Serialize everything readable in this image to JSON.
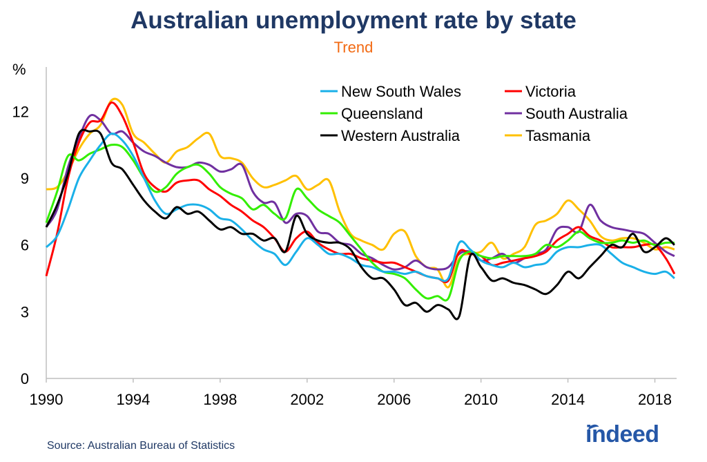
{
  "chart_data": {
    "type": "line",
    "title": "Australian unemployment rate by state",
    "subtitle": "Trend",
    "ylabel": "%",
    "ylim": [
      0,
      14
    ],
    "yticks": [
      0,
      3,
      6,
      9,
      12
    ],
    "xlim": [
      1990,
      2019
    ],
    "xticks": [
      1990,
      1994,
      1998,
      2002,
      2006,
      2010,
      2014,
      2018
    ],
    "legend": "top-right",
    "series": [
      {
        "name": "New South Wales",
        "color": "#1ab0e8",
        "x": [
          1990.0,
          1990.5,
          1991.0,
          1991.5,
          1992.0,
          1992.5,
          1993.0,
          1993.5,
          1994.0,
          1994.5,
          1995.0,
          1995.5,
          1996.0,
          1996.5,
          1997.0,
          1997.5,
          1998.0,
          1998.5,
          1999.0,
          1999.5,
          2000.0,
          2000.5,
          2001.0,
          2001.5,
          2002.0,
          2002.5,
          2003.0,
          2003.5,
          2004.0,
          2004.5,
          2005.0,
          2005.5,
          2006.0,
          2006.5,
          2007.0,
          2007.5,
          2008.0,
          2008.5,
          2009.0,
          2009.5,
          2010.0,
          2010.5,
          2011.0,
          2011.5,
          2012.0,
          2012.5,
          2013.0,
          2013.5,
          2014.0,
          2014.5,
          2015.0,
          2015.5,
          2016.0,
          2016.5,
          2017.0,
          2017.5,
          2018.0,
          2018.5,
          2018.9
        ],
        "y": [
          5.9,
          6.4,
          7.6,
          9.0,
          9.8,
          10.5,
          11.0,
          10.7,
          10.0,
          9.0,
          8.0,
          7.4,
          7.6,
          7.8,
          7.8,
          7.6,
          7.2,
          7.1,
          6.7,
          6.2,
          5.8,
          5.6,
          5.1,
          5.7,
          6.3,
          6.0,
          5.6,
          5.6,
          5.4,
          5.1,
          5.0,
          4.8,
          4.8,
          4.7,
          4.8,
          4.6,
          4.5,
          4.5,
          6.1,
          5.8,
          5.3,
          5.1,
          5.0,
          5.2,
          5.0,
          5.1,
          5.2,
          5.7,
          5.9,
          5.9,
          6.0,
          6.0,
          5.6,
          5.2,
          5.0,
          4.8,
          4.7,
          4.8,
          4.5
        ]
      },
      {
        "name": "Victoria",
        "color": "#ff0000",
        "x": [
          1990.0,
          1990.5,
          1991.0,
          1991.5,
          1992.0,
          1992.5,
          1993.0,
          1993.5,
          1994.0,
          1994.5,
          1995.0,
          1995.5,
          1996.0,
          1996.5,
          1997.0,
          1997.5,
          1998.0,
          1998.5,
          1999.0,
          1999.5,
          2000.0,
          2000.5,
          2001.0,
          2001.5,
          2002.0,
          2002.5,
          2003.0,
          2003.5,
          2004.0,
          2004.5,
          2005.0,
          2005.5,
          2006.0,
          2006.5,
          2007.0,
          2007.5,
          2008.0,
          2008.5,
          2009.0,
          2009.5,
          2010.0,
          2010.5,
          2011.0,
          2011.5,
          2012.0,
          2012.5,
          2013.0,
          2013.5,
          2014.0,
          2014.5,
          2015.0,
          2015.5,
          2016.0,
          2016.5,
          2017.0,
          2017.5,
          2018.0,
          2018.5,
          2018.9
        ],
        "y": [
          4.6,
          6.5,
          9.0,
          10.6,
          11.5,
          11.6,
          12.4,
          11.8,
          10.6,
          9.2,
          8.6,
          8.4,
          8.8,
          8.9,
          8.9,
          8.5,
          8.2,
          7.8,
          7.5,
          7.1,
          6.8,
          6.3,
          5.7,
          6.3,
          6.6,
          6.1,
          5.8,
          5.6,
          5.6,
          5.4,
          5.3,
          5.2,
          5.2,
          5.0,
          4.8,
          4.6,
          4.5,
          4.4,
          5.7,
          5.6,
          5.5,
          5.1,
          5.2,
          5.3,
          5.4,
          5.5,
          5.7,
          6.2,
          6.5,
          6.8,
          6.4,
          6.2,
          5.9,
          5.9,
          5.9,
          6.0,
          6.0,
          5.4,
          4.7
        ]
      },
      {
        "name": "Queensland",
        "color": "#33ee00",
        "x": [
          1990.0,
          1990.5,
          1991.0,
          1991.5,
          1992.0,
          1992.5,
          1993.0,
          1993.5,
          1994.0,
          1994.5,
          1995.0,
          1995.5,
          1996.0,
          1996.5,
          1997.0,
          1997.5,
          1998.0,
          1998.5,
          1999.0,
          1999.5,
          2000.0,
          2000.5,
          2001.0,
          2001.5,
          2002.0,
          2002.5,
          2003.0,
          2003.5,
          2004.0,
          2004.5,
          2005.0,
          2005.5,
          2006.0,
          2006.5,
          2007.0,
          2007.5,
          2008.0,
          2008.5,
          2009.0,
          2009.5,
          2010.0,
          2010.5,
          2011.0,
          2011.5,
          2012.0,
          2012.5,
          2013.0,
          2013.5,
          2014.0,
          2014.5,
          2015.0,
          2015.5,
          2016.0,
          2016.5,
          2017.0,
          2017.5,
          2018.0,
          2018.5,
          2018.9
        ],
        "y": [
          7.0,
          8.4,
          10.0,
          9.8,
          10.1,
          10.3,
          10.5,
          10.4,
          9.8,
          9.0,
          8.4,
          8.6,
          9.2,
          9.5,
          9.6,
          9.2,
          8.6,
          8.3,
          8.1,
          7.6,
          7.8,
          7.4,
          7.2,
          8.5,
          8.1,
          7.6,
          7.3,
          7.0,
          6.4,
          5.8,
          5.2,
          4.8,
          4.7,
          4.5,
          4.0,
          3.6,
          3.7,
          3.6,
          5.3,
          5.7,
          5.5,
          5.4,
          5.5,
          5.5,
          5.5,
          5.6,
          6.0,
          5.9,
          6.2,
          6.6,
          6.3,
          6.1,
          6.1,
          6.2,
          6.1,
          6.2,
          6.0,
          6.1,
          6.1
        ]
      },
      {
        "name": "South Australia",
        "color": "#7030a0",
        "x": [
          1990.0,
          1990.5,
          1991.0,
          1991.5,
          1992.0,
          1992.5,
          1993.0,
          1993.5,
          1994.0,
          1994.5,
          1995.0,
          1995.5,
          1996.0,
          1996.5,
          1997.0,
          1997.5,
          1998.0,
          1998.5,
          1999.0,
          1999.5,
          2000.0,
          2000.5,
          2001.0,
          2001.5,
          2002.0,
          2002.5,
          2003.0,
          2003.5,
          2004.0,
          2004.5,
          2005.0,
          2005.5,
          2006.0,
          2006.5,
          2007.0,
          2007.5,
          2008.0,
          2008.5,
          2009.0,
          2009.5,
          2010.0,
          2010.5,
          2011.0,
          2011.5,
          2012.0,
          2012.5,
          2013.0,
          2013.5,
          2014.0,
          2014.5,
          2015.0,
          2015.5,
          2016.0,
          2016.5,
          2017.0,
          2017.5,
          2018.0,
          2018.5,
          2018.9
        ],
        "y": [
          6.8,
          7.6,
          9.5,
          10.8,
          11.8,
          11.6,
          11.0,
          11.1,
          10.6,
          10.2,
          10.0,
          9.7,
          9.5,
          9.5,
          9.7,
          9.6,
          9.3,
          9.4,
          9.6,
          8.4,
          7.9,
          7.9,
          7.0,
          7.4,
          7.3,
          6.6,
          6.5,
          6.1,
          6.0,
          5.6,
          5.4,
          5.1,
          4.9,
          5.0,
          5.3,
          5.0,
          4.9,
          5.0,
          5.6,
          5.7,
          5.3,
          5.4,
          5.6,
          5.2,
          5.4,
          5.6,
          5.8,
          6.7,
          6.8,
          6.6,
          7.8,
          7.1,
          6.8,
          6.7,
          6.6,
          6.5,
          6.1,
          5.7,
          5.5
        ]
      },
      {
        "name": "Western Australia",
        "color": "#000000",
        "x": [
          1990.0,
          1990.5,
          1991.0,
          1991.5,
          1992.0,
          1992.5,
          1993.0,
          1993.5,
          1994.0,
          1994.5,
          1995.0,
          1995.5,
          1996.0,
          1996.5,
          1997.0,
          1997.5,
          1998.0,
          1998.5,
          1999.0,
          1999.5,
          2000.0,
          2000.5,
          2001.0,
          2001.5,
          2002.0,
          2002.5,
          2003.0,
          2003.5,
          2004.0,
          2004.5,
          2005.0,
          2005.5,
          2006.0,
          2006.5,
          2007.0,
          2007.5,
          2008.0,
          2008.5,
          2009.0,
          2009.5,
          2010.0,
          2010.5,
          2011.0,
          2011.5,
          2012.0,
          2012.5,
          2013.0,
          2013.5,
          2014.0,
          2014.5,
          2015.0,
          2015.5,
          2016.0,
          2016.5,
          2017.0,
          2017.5,
          2018.0,
          2018.5,
          2018.9
        ],
        "y": [
          6.8,
          7.8,
          9.2,
          11.0,
          11.1,
          11.0,
          9.7,
          9.4,
          8.7,
          8.0,
          7.5,
          7.2,
          7.7,
          7.4,
          7.5,
          7.1,
          6.7,
          6.8,
          6.5,
          6.5,
          6.2,
          6.3,
          5.7,
          7.3,
          6.5,
          6.2,
          6.1,
          6.1,
          5.8,
          5.0,
          4.5,
          4.5,
          4.0,
          3.3,
          3.4,
          3.0,
          3.3,
          3.1,
          2.8,
          5.5,
          5.0,
          4.4,
          4.5,
          4.3,
          4.2,
          4.0,
          3.8,
          4.2,
          4.8,
          4.5,
          5.0,
          5.5,
          6.0,
          5.9,
          6.5,
          5.7,
          5.9,
          6.3,
          6.0
        ]
      },
      {
        "name": "Tasmania",
        "color": "#ffc000",
        "x": [
          1990.0,
          1990.5,
          1991.0,
          1991.5,
          1992.0,
          1992.5,
          1993.0,
          1993.5,
          1994.0,
          1994.5,
          1995.0,
          1995.5,
          1996.0,
          1996.5,
          1997.0,
          1997.5,
          1998.0,
          1998.5,
          1999.0,
          1999.5,
          2000.0,
          2000.5,
          2001.0,
          2001.5,
          2002.0,
          2002.5,
          2003.0,
          2003.5,
          2004.0,
          2004.5,
          2005.0,
          2005.5,
          2006.0,
          2006.5,
          2007.0,
          2007.5,
          2008.0,
          2008.5,
          2009.0,
          2009.5,
          2010.0,
          2010.5,
          2011.0,
          2011.5,
          2012.0,
          2012.5,
          2013.0,
          2013.5,
          2014.0,
          2014.5,
          2015.0,
          2015.5,
          2016.0,
          2016.5,
          2017.0,
          2017.5,
          2018.0,
          2018.5,
          2018.9
        ],
        "y": [
          8.5,
          8.6,
          9.3,
          10.3,
          11.0,
          11.4,
          12.5,
          12.3,
          11.0,
          10.6,
          10.1,
          9.7,
          10.2,
          10.4,
          10.8,
          11.0,
          10.0,
          9.9,
          9.7,
          9.0,
          8.6,
          8.7,
          8.9,
          9.1,
          8.5,
          8.7,
          8.9,
          7.5,
          6.5,
          6.2,
          6.0,
          5.8,
          6.5,
          6.6,
          5.5,
          5.0,
          4.9,
          4.1,
          5.4,
          5.6,
          5.7,
          6.1,
          5.4,
          5.6,
          5.9,
          6.9,
          7.1,
          7.4,
          8.0,
          7.6,
          7.1,
          6.4,
          6.2,
          6.3,
          6.3,
          6.1,
          5.8,
          5.9,
          5.8
        ]
      }
    ]
  },
  "source": "Source: Australian Bureau of Statistics",
  "logo": "indeed"
}
